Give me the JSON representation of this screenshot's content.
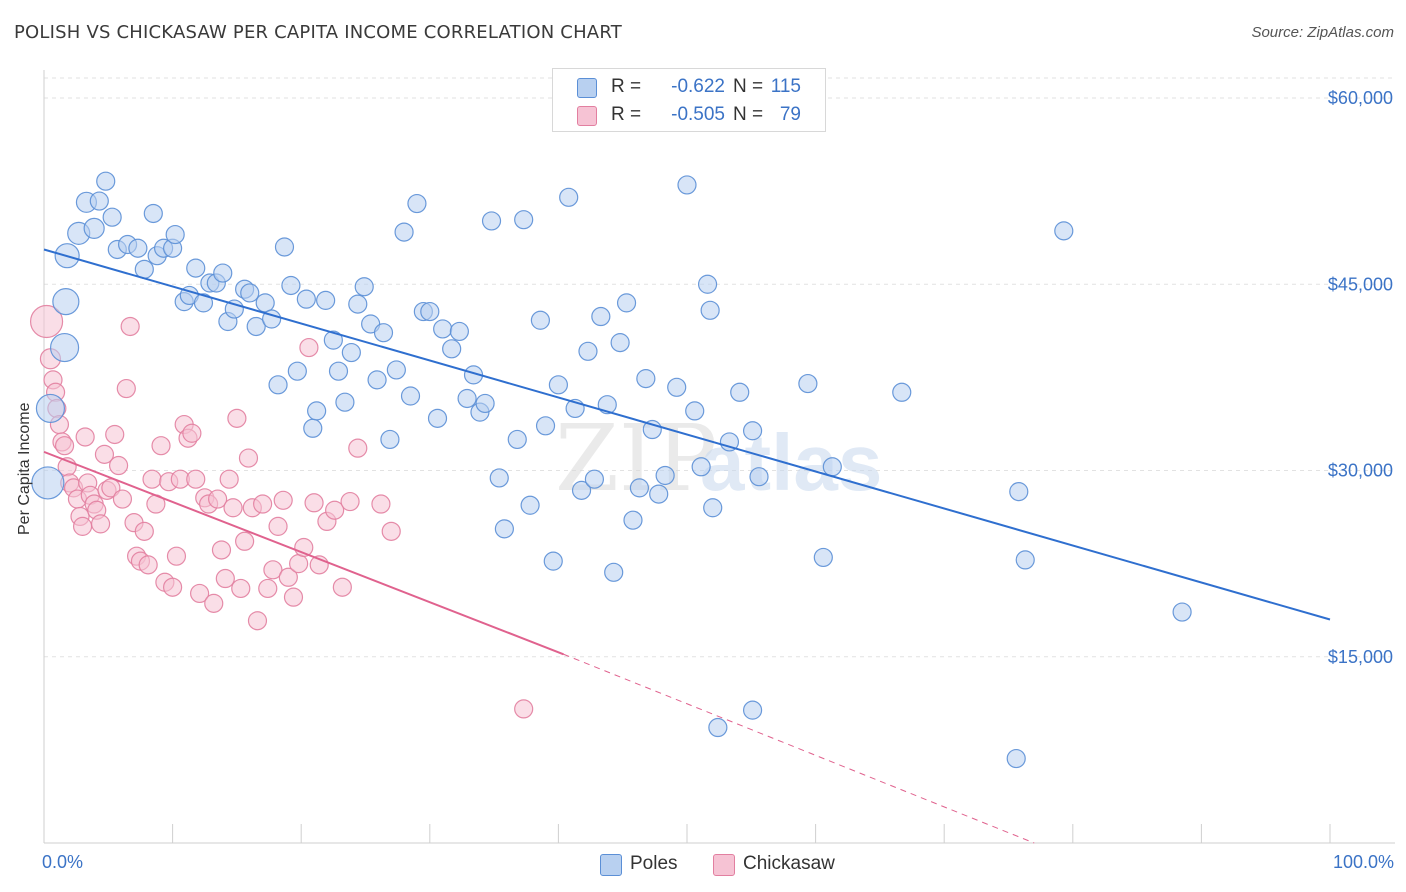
{
  "title": "POLISH VS CHICKASAW PER CAPITA INCOME CORRELATION CHART",
  "source": "Source: ZipAtlas.com",
  "watermark": {
    "zip": "ZIP",
    "atlas": "atlas"
  },
  "colors": {
    "poles_fill": "#b8d0f0",
    "poles_stroke": "#5b8fd6",
    "poles_line": "#2f6fcf",
    "chickasaw_fill": "#f6c3d4",
    "chickasaw_stroke": "#e27fa0",
    "chickasaw_line": "#e0628e",
    "axis_value": "#3b73c6",
    "grid": "#e2e2e2"
  },
  "legend_top": [
    {
      "label": "R =",
      "r": "-0.622",
      "n_label": "N =",
      "n": "115"
    },
    {
      "label": "R =",
      "r": "-0.505",
      "n_label": "N =",
      "n": "79"
    }
  ],
  "legend_bottom": [
    "Poles",
    "Chickasaw"
  ],
  "chart_data": {
    "type": "scatter",
    "ylabel": "Per Capita Income",
    "xlim": [
      0,
      100
    ],
    "ylim": [
      0,
      63500
    ],
    "x_tick_labels": [
      "0.0%",
      "100.0%"
    ],
    "y_ticks": [
      15000,
      30000,
      45000,
      60000
    ],
    "y_tick_labels": [
      "$15,000",
      "$30,000",
      "$45,000",
      "$60,000"
    ],
    "grid": "horizontal dashed",
    "legend_placement": "top-center",
    "series": [
      {
        "name": "Poles",
        "trend": {
          "x": [
            0,
            100
          ],
          "y": [
            47800,
            18000
          ],
          "style": "solid"
        },
        "points": [
          [
            0.3,
            29000,
            16
          ],
          [
            0.5,
            35000,
            14
          ],
          [
            1.6,
            39900,
            14
          ],
          [
            1.7,
            43600,
            13
          ],
          [
            1.8,
            47300,
            12
          ],
          [
            2.7,
            49100,
            11
          ],
          [
            3.3,
            51600,
            10
          ],
          [
            3.9,
            49500,
            10
          ],
          [
            4.3,
            51700,
            9
          ],
          [
            4.8,
            53300,
            9
          ],
          [
            5.3,
            50400,
            9
          ],
          [
            5.7,
            47800,
            9
          ],
          [
            6.5,
            48200,
            9
          ],
          [
            7.3,
            47900,
            9
          ],
          [
            7.8,
            46200,
            9
          ],
          [
            8.5,
            50700,
            9
          ],
          [
            8.8,
            47300,
            9
          ],
          [
            9.3,
            47900,
            9
          ],
          [
            10.0,
            47900,
            9
          ],
          [
            10.2,
            49000,
            9
          ],
          [
            10.9,
            43600,
            9
          ],
          [
            11.3,
            44100,
            9
          ],
          [
            11.8,
            46300,
            9
          ],
          [
            12.4,
            43500,
            9
          ],
          [
            12.9,
            45100,
            9
          ],
          [
            13.4,
            45100,
            9
          ],
          [
            13.9,
            45900,
            9
          ],
          [
            14.3,
            42000,
            9
          ],
          [
            14.8,
            43000,
            9
          ],
          [
            15.6,
            44600,
            9
          ],
          [
            16.0,
            44300,
            9
          ],
          [
            16.5,
            41600,
            9
          ],
          [
            17.2,
            43500,
            9
          ],
          [
            17.7,
            42200,
            9
          ],
          [
            18.2,
            36900,
            9
          ],
          [
            18.7,
            48000,
            9
          ],
          [
            19.2,
            44900,
            9
          ],
          [
            19.7,
            38000,
            9
          ],
          [
            20.4,
            43800,
            9
          ],
          [
            20.9,
            33400,
            9
          ],
          [
            21.2,
            34800,
            9
          ],
          [
            21.9,
            43700,
            9
          ],
          [
            22.5,
            40500,
            9
          ],
          [
            22.9,
            38000,
            9
          ],
          [
            23.4,
            35500,
            9
          ],
          [
            23.9,
            39500,
            9
          ],
          [
            24.4,
            43400,
            9
          ],
          [
            24.9,
            44800,
            9
          ],
          [
            25.4,
            41800,
            9
          ],
          [
            25.9,
            37300,
            9
          ],
          [
            26.4,
            41100,
            9
          ],
          [
            26.9,
            32500,
            9
          ],
          [
            27.4,
            38100,
            9
          ],
          [
            28.0,
            49200,
            9
          ],
          [
            28.5,
            36000,
            9
          ],
          [
            29.0,
            51500,
            9
          ],
          [
            29.5,
            42800,
            9
          ],
          [
            30.0,
            42800,
            9
          ],
          [
            30.6,
            34200,
            9
          ],
          [
            31.0,
            41400,
            9
          ],
          [
            31.7,
            39800,
            9
          ],
          [
            32.3,
            41200,
            9
          ],
          [
            32.9,
            35800,
            9
          ],
          [
            33.4,
            37700,
            9
          ],
          [
            33.9,
            34700,
            9
          ],
          [
            34.3,
            35400,
            9
          ],
          [
            34.8,
            50100,
            9
          ],
          [
            35.4,
            29400,
            9
          ],
          [
            35.8,
            25300,
            9
          ],
          [
            36.8,
            32500,
            9
          ],
          [
            37.3,
            50200,
            9
          ],
          [
            37.8,
            27200,
            9
          ],
          [
            38.6,
            42100,
            9
          ],
          [
            39.0,
            33600,
            9
          ],
          [
            39.6,
            22700,
            9
          ],
          [
            40.0,
            36900,
            9
          ],
          [
            40.8,
            52000,
            9
          ],
          [
            41.3,
            35000,
            9
          ],
          [
            41.8,
            28400,
            9
          ],
          [
            42.3,
            39600,
            9
          ],
          [
            42.8,
            29300,
            9
          ],
          [
            43.3,
            42400,
            9
          ],
          [
            43.8,
            35300,
            9
          ],
          [
            44.3,
            21800,
            9
          ],
          [
            44.8,
            40300,
            9
          ],
          [
            45.3,
            43500,
            9
          ],
          [
            45.8,
            26000,
            9
          ],
          [
            46.3,
            28600,
            9
          ],
          [
            46.8,
            37400,
            9
          ],
          [
            47.3,
            33300,
            9
          ],
          [
            47.8,
            28100,
            9
          ],
          [
            48.3,
            29600,
            9
          ],
          [
            49.2,
            36700,
            9
          ],
          [
            50.0,
            53000,
            9
          ],
          [
            50.6,
            34800,
            9
          ],
          [
            51.1,
            30300,
            9
          ],
          [
            51.6,
            45000,
            9
          ],
          [
            51.8,
            42900,
            9
          ],
          [
            52.0,
            27000,
            9
          ],
          [
            52.4,
            9300,
            9
          ],
          [
            53.3,
            32300,
            9
          ],
          [
            54.1,
            36300,
            9
          ],
          [
            55.1,
            33200,
            9
          ],
          [
            55.6,
            29500,
            9
          ],
          [
            55.1,
            10700,
            9
          ],
          [
            59.4,
            37000,
            9
          ],
          [
            60.6,
            23000,
            9
          ],
          [
            61.3,
            30300,
            9
          ],
          [
            66.7,
            36300,
            9
          ],
          [
            75.6,
            6800,
            9
          ],
          [
            75.8,
            28300,
            9
          ],
          [
            76.3,
            22800,
            9
          ],
          [
            79.3,
            49300,
            9
          ],
          [
            88.5,
            18600,
            9
          ]
        ]
      },
      {
        "name": "Chickasaw",
        "trend": {
          "x": [
            0,
            40.4,
            77
          ],
          "y": [
            31500,
            15200,
            0
          ],
          "style": "solid-then-dashed"
        },
        "points": [
          [
            0.2,
            42000,
            16
          ],
          [
            0.5,
            39000,
            10
          ],
          [
            0.7,
            37300,
            9
          ],
          [
            0.9,
            36300,
            9
          ],
          [
            1.0,
            35000,
            9
          ],
          [
            1.2,
            33700,
            9
          ],
          [
            1.4,
            32300,
            9
          ],
          [
            1.6,
            32000,
            9
          ],
          [
            1.8,
            30300,
            9
          ],
          [
            2.0,
            29000,
            9
          ],
          [
            2.3,
            28600,
            9
          ],
          [
            2.6,
            27700,
            9
          ],
          [
            2.8,
            26300,
            9
          ],
          [
            3.0,
            25500,
            9
          ],
          [
            3.2,
            32700,
            9
          ],
          [
            3.4,
            29000,
            9
          ],
          [
            3.6,
            28000,
            9
          ],
          [
            3.9,
            27300,
            9
          ],
          [
            4.1,
            26800,
            9
          ],
          [
            4.4,
            25700,
            9
          ],
          [
            4.7,
            31300,
            9
          ],
          [
            4.9,
            28400,
            9
          ],
          [
            5.2,
            28600,
            9
          ],
          [
            5.5,
            32900,
            9
          ],
          [
            5.8,
            30400,
            9
          ],
          [
            6.1,
            27700,
            9
          ],
          [
            6.4,
            36600,
            9
          ],
          [
            6.7,
            41600,
            9
          ],
          [
            7.0,
            25800,
            9
          ],
          [
            7.2,
            23100,
            9
          ],
          [
            7.5,
            22700,
            9
          ],
          [
            7.8,
            25100,
            9
          ],
          [
            8.1,
            22400,
            9
          ],
          [
            8.4,
            29300,
            9
          ],
          [
            8.7,
            27300,
            9
          ],
          [
            9.1,
            32000,
            9
          ],
          [
            9.4,
            21000,
            9
          ],
          [
            9.7,
            29100,
            9
          ],
          [
            10.0,
            20600,
            9
          ],
          [
            10.3,
            23100,
            9
          ],
          [
            10.6,
            29300,
            9
          ],
          [
            10.9,
            33700,
            9
          ],
          [
            11.2,
            32600,
            9
          ],
          [
            11.5,
            33000,
            9
          ],
          [
            11.8,
            29300,
            9
          ],
          [
            12.1,
            20100,
            9
          ],
          [
            12.5,
            27800,
            9
          ],
          [
            12.8,
            27300,
            9
          ],
          [
            13.2,
            19300,
            9
          ],
          [
            13.5,
            27700,
            9
          ],
          [
            13.8,
            23600,
            9
          ],
          [
            14.1,
            21300,
            9
          ],
          [
            14.4,
            29300,
            9
          ],
          [
            14.7,
            27000,
            9
          ],
          [
            15.0,
            34200,
            9
          ],
          [
            15.3,
            20500,
            9
          ],
          [
            15.6,
            24300,
            9
          ],
          [
            15.9,
            31000,
            9
          ],
          [
            16.2,
            27000,
            9
          ],
          [
            16.6,
            17900,
            9
          ],
          [
            17.0,
            27300,
            9
          ],
          [
            17.4,
            20500,
            9
          ],
          [
            17.8,
            22000,
            9
          ],
          [
            18.2,
            25500,
            9
          ],
          [
            18.6,
            27600,
            9
          ],
          [
            19.0,
            21400,
            9
          ],
          [
            19.4,
            19800,
            9
          ],
          [
            19.8,
            22500,
            9
          ],
          [
            20.2,
            23800,
            9
          ],
          [
            20.6,
            39900,
            9
          ],
          [
            21.0,
            27400,
            9
          ],
          [
            21.4,
            22400,
            9
          ],
          [
            22.0,
            25900,
            9
          ],
          [
            22.6,
            26800,
            9
          ],
          [
            23.2,
            20600,
            9
          ],
          [
            23.8,
            27500,
            9
          ],
          [
            24.4,
            31800,
            9
          ],
          [
            26.2,
            27300,
            9
          ],
          [
            27.0,
            25100,
            9
          ],
          [
            37.3,
            10800,
            9
          ]
        ]
      }
    ]
  }
}
